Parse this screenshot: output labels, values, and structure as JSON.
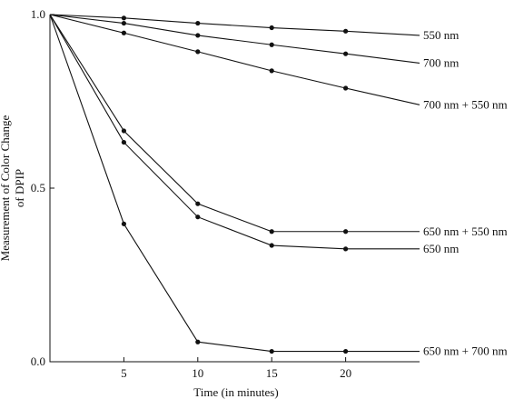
{
  "chart_data": {
    "type": "line",
    "xlabel": "Time (in minutes)",
    "ylabel": "Measurement of Color Change of DPIP",
    "ylabel_lines": [
      "Measurement of Color Change",
      "of DPIP"
    ],
    "x_ticks": [
      5,
      10,
      15,
      20
    ],
    "y_ticks": [
      0.0,
      0.5,
      1.0
    ],
    "y_tick_labels": [
      "0.0",
      "0.5",
      "1.0"
    ],
    "xlim": [
      0,
      25
    ],
    "ylim": [
      0,
      1.0
    ],
    "grid": false,
    "legend": "line-end labels",
    "x": [
      0,
      5,
      10,
      15,
      20
    ],
    "series": [
      {
        "name": "550 nm",
        "values": [
          1.0,
          0.99,
          0.975,
          0.962,
          0.952
        ],
        "end_value": 0.94
      },
      {
        "name": "700 nm",
        "values": [
          1.0,
          0.975,
          0.94,
          0.913,
          0.887
        ],
        "end_value": 0.86
      },
      {
        "name": "700 nm + 550 nm",
        "values": [
          1.0,
          0.947,
          0.893,
          0.838,
          0.788
        ],
        "end_value": 0.74
      },
      {
        "name": "650 nm + 550 nm",
        "values": [
          1.0,
          0.665,
          0.455,
          0.375,
          0.375
        ],
        "end_value": 0.375
      },
      {
        "name": "650 nm",
        "values": [
          1.0,
          0.632,
          0.417,
          0.335,
          0.325
        ],
        "end_value": 0.325
      },
      {
        "name": "650 nm + 700 nm",
        "values": [
          1.0,
          0.397,
          0.057,
          0.03,
          0.03
        ],
        "end_value": 0.03
      }
    ]
  }
}
